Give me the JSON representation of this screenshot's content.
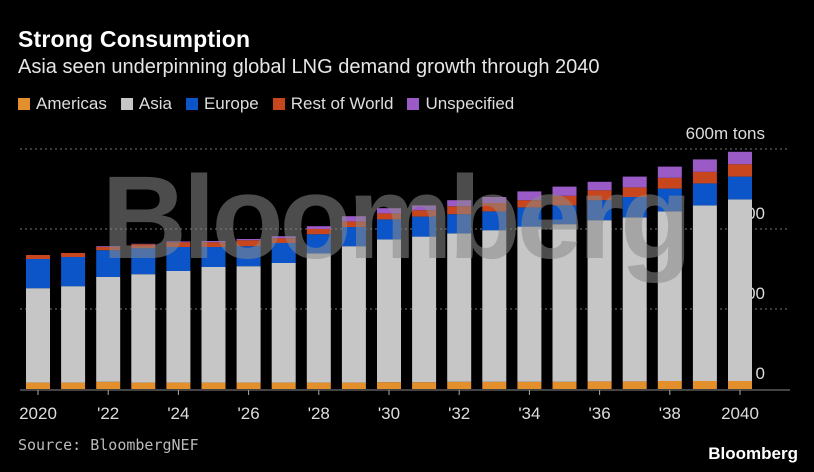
{
  "header": {
    "title": "Strong Consumption",
    "subtitle": "Asia seen underpinning global LNG demand growth through 2040"
  },
  "footer": {
    "source": "Source: BloombergNEF",
    "logo": "Bloomberg"
  },
  "watermark": "Bloomberg",
  "chart_data": {
    "type": "bar",
    "stacked": true,
    "title": "Strong Consumption",
    "subtitle": "Asia seen underpinning global LNG demand growth through 2040",
    "ylabel": "600m tons",
    "ylim": [
      0,
      600
    ],
    "yticks": [
      0,
      200,
      400,
      600
    ],
    "ytick_labels": [
      "0",
      "200",
      "400",
      "600m tons"
    ],
    "grid": true,
    "legend": "top-left",
    "categories": [
      2020,
      2021,
      2022,
      2023,
      2024,
      2025,
      2026,
      2027,
      2028,
      2029,
      2030,
      2031,
      2032,
      2033,
      2034,
      2035,
      2036,
      2037,
      2038,
      2039,
      2040
    ],
    "xtick_labels": [
      "2020",
      "'22",
      "'24",
      "'26",
      "'28",
      "'30",
      "'32",
      "'34",
      "'36",
      "'38",
      "2040"
    ],
    "series": [
      {
        "name": "Americas",
        "color": "#e3902c",
        "values": [
          16,
          16,
          18,
          16,
          16,
          16,
          16,
          16,
          16,
          16,
          17,
          17,
          18,
          18,
          18,
          18,
          19,
          19,
          20,
          20,
          20
        ]
      },
      {
        "name": "Asia",
        "color": "#c6c6c6",
        "values": [
          236,
          241,
          262,
          271,
          279,
          289,
          291,
          299,
          323,
          341,
          357,
          364,
          371,
          379,
          388,
          394,
          403,
          410,
          424,
          439,
          454
        ]
      },
      {
        "name": "Europe",
        "color": "#0b55c9",
        "values": [
          73,
          73,
          67,
          65,
          60,
          50,
          50,
          50,
          48,
          48,
          50,
          50,
          48,
          47,
          48,
          47,
          50,
          51,
          57,
          55,
          57
        ]
      },
      {
        "name": "Rest of World",
        "color": "#c7461d",
        "values": [
          10,
          10,
          8,
          10,
          12,
          12,
          15,
          12,
          13,
          14,
          15,
          16,
          20,
          21,
          18,
          24,
          25,
          24,
          27,
          29,
          31
        ]
      },
      {
        "name": "Unspecified",
        "color": "#9b5bc6",
        "values": [
          0,
          0,
          2,
          1,
          2,
          3,
          3,
          5,
          7,
          13,
          13,
          12,
          15,
          15,
          22,
          23,
          21,
          27,
          28,
          31,
          31
        ]
      }
    ]
  }
}
